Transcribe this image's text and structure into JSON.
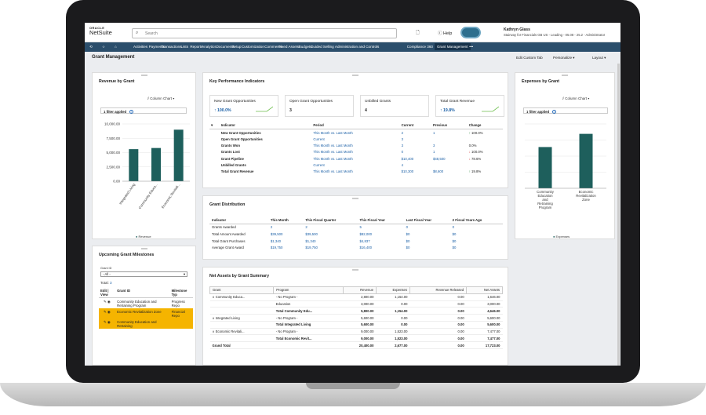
{
  "app": {
    "logo_top": "ORACLE",
    "logo_name": "NetSuite"
  },
  "search": {
    "placeholder": "Search"
  },
  "topbar": {
    "help": "Help",
    "user_name": "Kathryn Glass",
    "user_role": "Stairway for Financials GB US - Leading - 05.08 - 25.2 - Administrator"
  },
  "nav": [
    "Activities",
    "Payments",
    "Transactions",
    "Lists",
    "Reports",
    "Analytics",
    "Documents",
    "Setup",
    "Customization",
    "Commerce",
    "Fixed Assets",
    "Budgets",
    "Guided Selling",
    "Administration and Controls",
    "Compliance 360",
    "Grant Management",
    "•••"
  ],
  "page": {
    "title": "Grant Management",
    "edit_tab": "Edit Custom Tab",
    "personalize": "Personalize",
    "layout": "Layout"
  },
  "revenue": {
    "title": "Revenue by Grant",
    "chart_type": "Column Chart",
    "filter": "1 filter applied",
    "legend": "Revenue",
    "chart_data": {
      "type": "bar",
      "categories": [
        "Integrated Living",
        "Community Educa...",
        "Economic Revitali..."
      ],
      "series": [
        {
          "name": "Revenue",
          "values": [
            5600,
            5800,
            9000
          ]
        }
      ],
      "ylim": [
        0,
        10000
      ],
      "yticks": [
        "10,000.00",
        "7,500.00",
        "5,000.00",
        "2,500.00",
        "0.00"
      ],
      "color": "#1e5f5c"
    }
  },
  "milestones": {
    "title": "Upcoming Grant Milestones",
    "grant_id_label": "Grant ID",
    "grant_id_value": "- All -",
    "total_label": "Total:",
    "total_value": "3",
    "headers": [
      "Edit | View",
      "Grant ID",
      "Milestone Typ"
    ],
    "rows": [
      {
        "grant": "Community Education and Retraining Program",
        "type": "Progress Repo",
        "highlight": false
      },
      {
        "grant": "Economic Revitalization Zone",
        "type": "Financial Repo",
        "highlight": true
      },
      {
        "grant": "Community Education and Retraining",
        "type": "",
        "highlight": true
      }
    ]
  },
  "kpi": {
    "title": "Key Performance Indicators",
    "boxes": [
      {
        "label": "New Grant Opportunities",
        "value": "↑ 100.0%"
      },
      {
        "label": "Open Grant Opportunities",
        "value": "3"
      },
      {
        "label": "Unbilled Grants",
        "value": "4"
      },
      {
        "label": "Total Grant Revenue",
        "value": "↑ 19.8%"
      }
    ],
    "headers": [
      "Indicator",
      "Period",
      "Current",
      "Previous",
      "Change"
    ],
    "rows": [
      [
        "New Grant Opportunities",
        "This Month vs. Last Month",
        "2",
        "1",
        "↑ 100.0%"
      ],
      [
        "Open Grant Opportunities",
        "Current",
        "3",
        "",
        ""
      ],
      [
        "Grants Won",
        "This Month vs. Last Month",
        "3",
        "3",
        "0.0%"
      ],
      [
        "Grants Lost",
        "This Month vs. Last Month",
        "0",
        "1",
        "↓ 100.0%"
      ],
      [
        "Grant Pipeline",
        "This Month vs. Last Month",
        "$10,400",
        "$48,500",
        "↓ 78.6%"
      ],
      [
        "Unbilled Grants",
        "Current",
        "4",
        "",
        ""
      ],
      [
        "Total Grant Revenue",
        "This Month vs. Last Month",
        "$10,300",
        "$8,600",
        "↑ 19.8%"
      ]
    ]
  },
  "distribution": {
    "title": "Grant Distribution",
    "headers": [
      "Indicator",
      "This Month",
      "This Fiscal Quarter",
      "This Fiscal Year",
      "Last Fiscal Year",
      "2 Fiscal Years Ago"
    ],
    "rows": [
      [
        "Grants Awarded",
        "2",
        "2",
        "5",
        "0",
        "0"
      ],
      [
        "Total Amount Awarded",
        "$39,500",
        "$39,500",
        "$82,000",
        "$0",
        "$0"
      ],
      [
        "Total Grant Purchases",
        "$1,340",
        "$1,340",
        "$4,837",
        "$0",
        "$0"
      ],
      [
        "Average Grant Award",
        "$19,750",
        "$19,750",
        "$16,400",
        "$0",
        "$0"
      ]
    ]
  },
  "netassets": {
    "title": "Net Assets by Grant Summary",
    "headers": [
      "Grant",
      "Program",
      "Revenue",
      "Expenses",
      "Revenue Released",
      "Net Assets"
    ],
    "rows": [
      [
        "∨ Community Educa...",
        "- No Program -",
        "2,800.00",
        "1,154.00",
        "0.00",
        "1,646.00",
        false
      ],
      [
        "",
        "Education",
        "3,000.00",
        "0.00",
        "0.00",
        "3,000.00",
        false
      ],
      [
        "",
        "Total Community Edu...",
        "5,800.00",
        "1,154.00",
        "0.00",
        "4,646.00",
        true
      ],
      [
        "∨ Integrated Living",
        "- No Program -",
        "5,600.00",
        "0.00",
        "0.00",
        "5,600.00",
        false
      ],
      [
        "",
        "Total Integrated Living",
        "5,600.00",
        "0.00",
        "0.00",
        "5,600.00",
        true
      ],
      [
        "∨ Economic Revitali...",
        "- No Program -",
        "9,000.00",
        "1,523.00",
        "0.00",
        "7,477.00",
        false
      ],
      [
        "",
        "Total Economic Revit...",
        "9,000.00",
        "1,523.00",
        "0.00",
        "7,477.00",
        true
      ],
      [
        "Grand Total",
        "",
        "20,400.00",
        "2,677.00",
        "0.00",
        "17,723.00",
        true
      ]
    ]
  },
  "expenses": {
    "title": "Expenses by Grant",
    "chart_type": "Column Chart",
    "filter": "1 filter applied",
    "legend": "Expenses",
    "chart_data": {
      "type": "bar",
      "categories": [
        "Community Education and Retraining Program",
        "Economic Revitalization Zone"
      ],
      "series": [
        {
          "name": "Expenses",
          "values": [
            1154,
            1523
          ]
        }
      ],
      "ylim": [
        0,
        1800
      ],
      "color": "#1e5f5c"
    }
  }
}
